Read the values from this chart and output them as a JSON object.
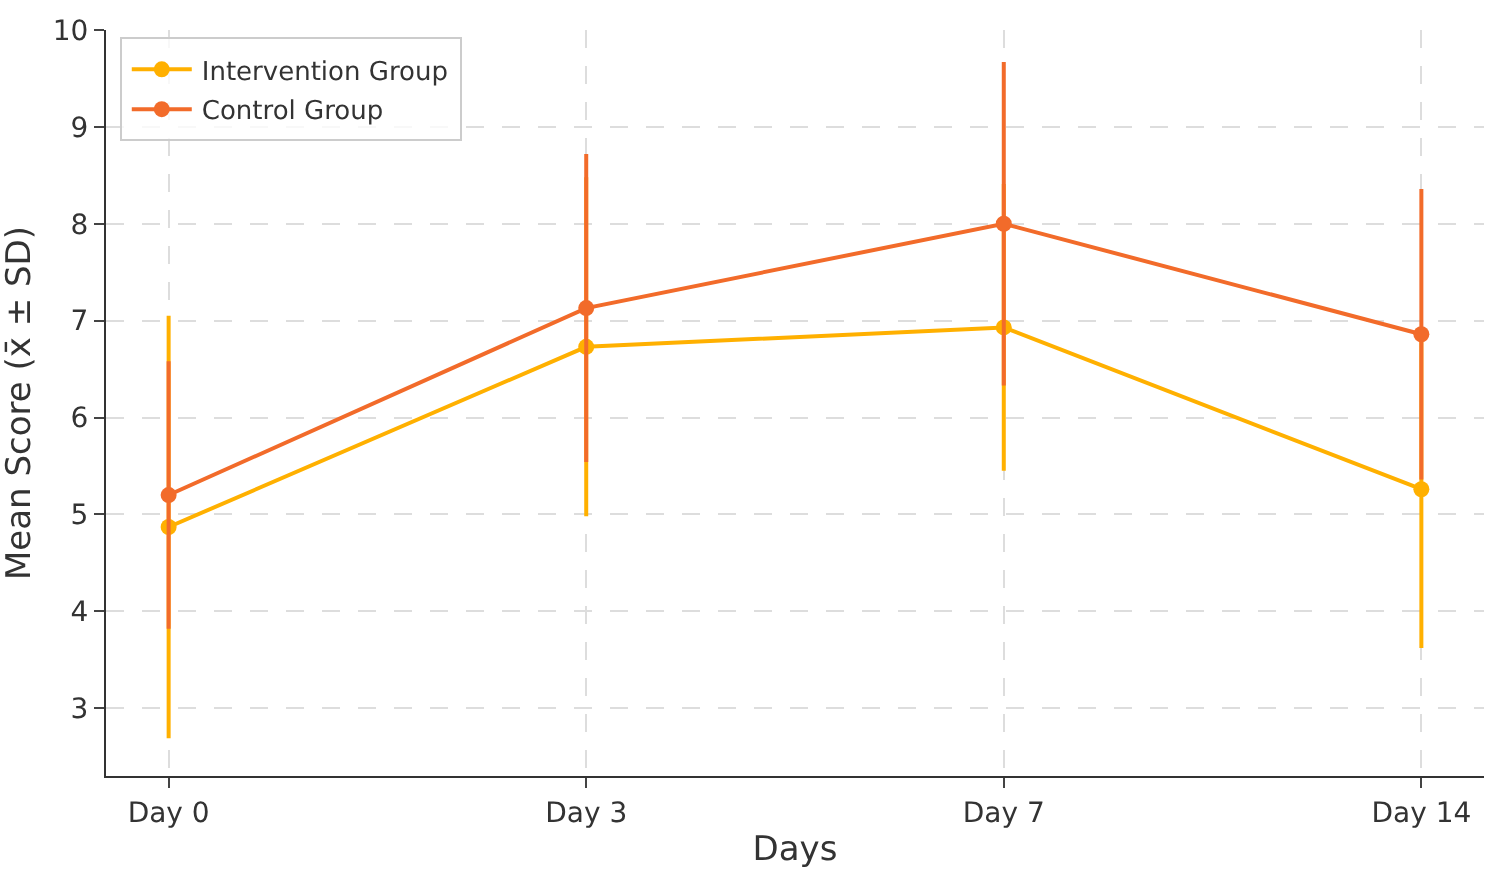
{
  "chart_data": {
    "type": "line",
    "xlabel": "Days",
    "ylabel": "Mean Score (x̄ ± SD)",
    "categories": [
      "Day 0",
      "Day 3",
      "Day 7",
      "Day 14"
    ],
    "series": [
      {
        "name": "Intervention Group",
        "color": "#ffb000",
        "values": [
          4.87,
          6.73,
          6.93,
          5.26
        ],
        "errors": [
          2.18,
          1.75,
          1.48,
          1.64
        ]
      },
      {
        "name": "Control Group",
        "color": "#f26b2a",
        "values": [
          5.2,
          7.13,
          8.0,
          6.86
        ],
        "errors": [
          1.38,
          1.59,
          1.67,
          1.5
        ]
      }
    ],
    "ylim": [
      2.3,
      10
    ],
    "yticks": [
      3,
      4,
      5,
      6,
      7,
      8,
      9,
      10
    ],
    "grid": true,
    "legend": "top left",
    "marker": "circle",
    "line_style": "solid"
  }
}
